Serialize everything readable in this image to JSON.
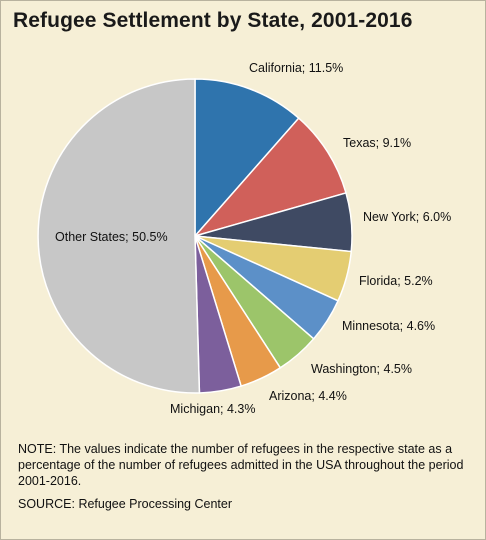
{
  "title": "Refugee Settlement by State, 2001-2016",
  "note": {
    "label": "NOTE:",
    "text": "The values indicate the number of refugees in the respective state as a percentage of the number of refugees admitted in the USA throughout the period 2001-2016."
  },
  "source": {
    "label": "SOURCE:",
    "text": "Refugee Processing Center"
  },
  "chart_data": {
    "type": "pie",
    "title": "Refugee Settlement by State, 2001-2016",
    "slices": [
      {
        "label": "California; 11.5%",
        "value": 11.5,
        "color": "#2f74ad"
      },
      {
        "label": "Texas; 9.1%",
        "value": 9.1,
        "color": "#d0605a"
      },
      {
        "label": "New York; 6.0%",
        "value": 6.0,
        "color": "#3f4a63"
      },
      {
        "label": "Florida; 5.2%",
        "value": 5.2,
        "color": "#e4cd72"
      },
      {
        "label": "Minnesota; 4.6%",
        "value": 4.6,
        "color": "#5c90c8"
      },
      {
        "label": "Washington; 4.5%",
        "value": 4.5,
        "color": "#9cc56a"
      },
      {
        "label": "Arizona; 4.4%",
        "value": 4.4,
        "color": "#e79a4a"
      },
      {
        "label": "Michigan; 4.3%",
        "value": 4.3,
        "color": "#7c5f9c"
      },
      {
        "label": "Other States; 50.5%",
        "value": 50.5,
        "color": "#c7c7c7"
      }
    ]
  }
}
